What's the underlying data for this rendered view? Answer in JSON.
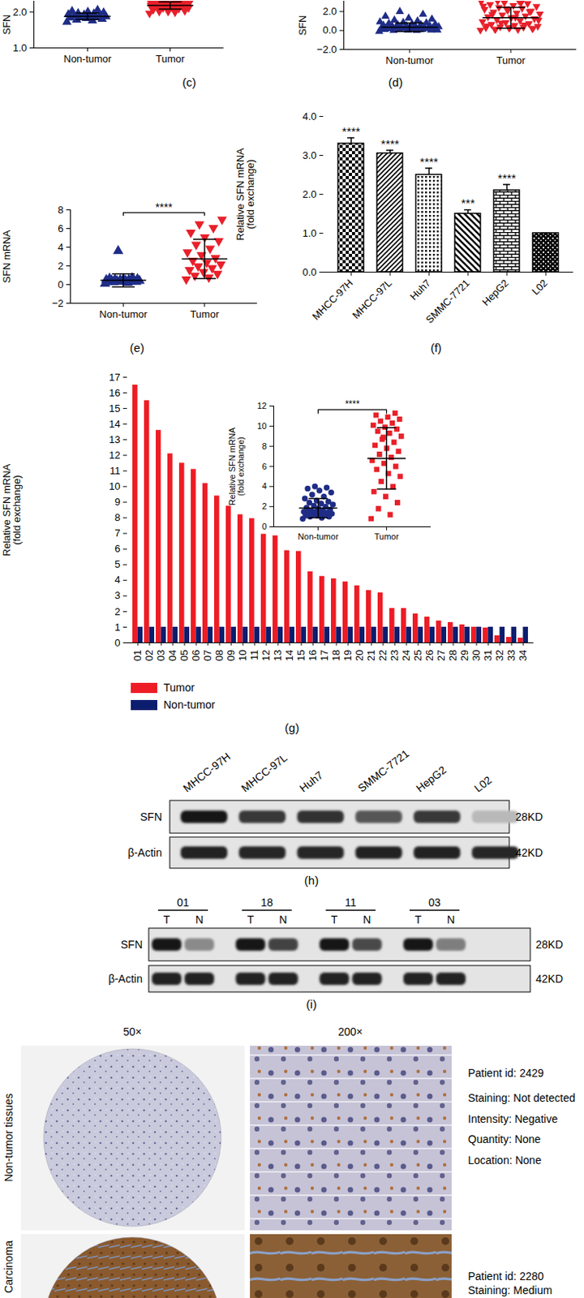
{
  "chart_data": [
    {
      "type": "scatter",
      "title": "(c)",
      "ylabel": "SFN",
      "ylim": [
        1,
        2.3
      ],
      "yticks": [
        1,
        2
      ],
      "series": [
        {
          "name": "Non-tumor",
          "color": "#1f2d86",
          "marker": "triangle",
          "mean": 1.88,
          "sd": 0.09,
          "values": [
            1.72,
            1.76,
            1.78,
            1.8,
            1.82,
            1.84,
            1.85,
            1.85,
            1.87,
            1.88,
            1.9,
            1.9,
            1.92,
            1.93,
            1.95,
            1.96,
            1.98,
            2.0,
            2.02,
            2.05
          ]
        },
        {
          "name": "Tumor",
          "color": "#e8202a",
          "marker": "triangle-down",
          "mean": 2.18,
          "sd": 0.1,
          "values": [
            1.95,
            1.98,
            2.0,
            2.02,
            2.05,
            2.05,
            2.08,
            2.1,
            2.1,
            2.12,
            2.13,
            2.15,
            2.15,
            2.17,
            2.18,
            2.2,
            2.2,
            2.22,
            2.23,
            2.25,
            2.25,
            2.27,
            2.28,
            2.3,
            2.3,
            2.0,
            2.07,
            2.14,
            2.19,
            2.24,
            2.12,
            2.16,
            2.21,
            2.26,
            2.29,
            2.03,
            2.09,
            2.11,
            2.18,
            2.28
          ]
        }
      ]
    },
    {
      "type": "scatter",
      "title": "(d)",
      "ylabel": "SFN",
      "ylim": [
        -2,
        3.1
      ],
      "yticks": [
        -2,
        0,
        2
      ],
      "series": [
        {
          "name": "Non-tumor",
          "color": "#1f2d86",
          "marker": "triangle",
          "mean": 0.35,
          "sd": 0.45,
          "values": [
            -0.1,
            0,
            0,
            0.05,
            0.05,
            0.1,
            0.1,
            0.1,
            0.15,
            0.15,
            0.2,
            0.2,
            0.2,
            0.25,
            0.25,
            0.3,
            0.3,
            0.3,
            0.35,
            0.35,
            0.4,
            0.4,
            0.45,
            0.45,
            0.5,
            0.5,
            0.55,
            0.6,
            0.6,
            0.65,
            0.7,
            0.75,
            0.8,
            0.85,
            0.9,
            1.0,
            1.1,
            1.2,
            1.3,
            1.5,
            1.7,
            2.0,
            0.05,
            0.12,
            0.18,
            0.22,
            0.28,
            0.33,
            0.38,
            0.42
          ]
        },
        {
          "name": "Tumor",
          "color": "#e8202a",
          "marker": "triangle-down",
          "mean": 1.35,
          "sd": 1.1,
          "values": [
            0,
            0.05,
            0.1,
            0.15,
            0.2,
            0.25,
            0.3,
            0.35,
            0.4,
            0.5,
            0.6,
            0.7,
            0.8,
            0.9,
            1.0,
            1.1,
            1.2,
            1.3,
            1.4,
            1.5,
            1.6,
            1.7,
            1.8,
            1.9,
            2.0,
            2.1,
            2.2,
            2.3,
            2.4,
            2.5,
            2.6,
            2.7,
            2.8,
            2.9,
            3.0,
            3.1,
            0.08,
            0.18,
            0.28,
            0.45,
            0.55,
            0.75,
            1.05,
            1.35,
            1.65,
            1.95,
            2.25,
            2.55,
            2.85,
            3.05
          ]
        }
      ]
    },
    {
      "type": "scatter",
      "title": "(e)",
      "ylabel": "SFN mRNA",
      "ylim": [
        -2,
        8
      ],
      "yticks": [
        -2,
        0,
        2,
        4,
        6,
        8
      ],
      "annotations": [
        "****"
      ],
      "series": [
        {
          "name": "Non-tumor",
          "color": "#1f2d86",
          "marker": "triangle",
          "mean": 0.45,
          "sd": 0.7,
          "values": [
            0.1,
            0.2,
            0.25,
            0.3,
            0.3,
            0.35,
            0.35,
            0.4,
            0.4,
            0.42,
            0.45,
            0.45,
            0.5,
            0.5,
            0.52,
            0.55,
            0.6,
            0.6,
            0.65,
            0.7,
            3.6
          ]
        },
        {
          "name": "Tumor",
          "color": "#e8202a",
          "marker": "triangle-down",
          "mean": 2.75,
          "sd": 2.1,
          "values": [
            0.5,
            0.7,
            0.9,
            1.1,
            1.3,
            1.5,
            1.7,
            1.9,
            2.1,
            2.3,
            2.5,
            2.8,
            3.1,
            3.4,
            3.8,
            4.2,
            4.6,
            5.0,
            5.5,
            6.0,
            6.4,
            6.9
          ]
        }
      ]
    },
    {
      "type": "bar",
      "title": "(f)",
      "ylabel": "Relative SFN mRNA\n(fold exchange)",
      "ylim": [
        0,
        4
      ],
      "yticks": [
        0,
        1,
        2,
        3,
        4
      ],
      "color": "#000000",
      "categories": [
        "MHCC-97H",
        "MHCC-97L",
        "Huh7",
        "SMMC-7721",
        "HepG2",
        "L02"
      ],
      "values": [
        3.3,
        3.05,
        2.5,
        1.5,
        2.1,
        1.0
      ],
      "errors": [
        0.15,
        0.08,
        0.17,
        0.1,
        0.15,
        0
      ],
      "annotations": [
        "****",
        "****",
        "****",
        "***",
        "****",
        null
      ]
    },
    {
      "type": "bar",
      "title": "(g)",
      "ylabel": "Relative SFN mRNA\n(fold exchange)",
      "ylim": [
        0,
        17
      ],
      "yticks": [
        0,
        1,
        2,
        3,
        4,
        5,
        6,
        7,
        8,
        9,
        10,
        11,
        12,
        13,
        14,
        15,
        16,
        17
      ],
      "legend": "bottom",
      "categories": [
        "01",
        "02",
        "03",
        "04",
        "05",
        "06",
        "07",
        "08",
        "09",
        "10",
        "11",
        "12",
        "13",
        "14",
        "15",
        "16",
        "17",
        "18",
        "19",
        "20",
        "21",
        "22",
        "23",
        "24",
        "25",
        "26",
        "27",
        "28",
        "29",
        "30",
        "31",
        "32",
        "33",
        "34"
      ],
      "series": [
        {
          "name": "Tumor",
          "color": "#ee1c25",
          "values": [
            16.5,
            15.5,
            13.6,
            12.1,
            11.5,
            11.1,
            10.2,
            9.4,
            8.75,
            8.2,
            7.95,
            6.95,
            6.85,
            5.9,
            5.85,
            4.55,
            4.25,
            4.1,
            3.9,
            3.65,
            3.35,
            3.2,
            2.2,
            2.2,
            1.85,
            1.65,
            1.4,
            1.3,
            1.15,
            1.0,
            0.95,
            0.45,
            0.35,
            0.3
          ]
        },
        {
          "name": "Non-tumor",
          "color": "#0b1d6e",
          "values": [
            1,
            1,
            1,
            1,
            1,
            1,
            1,
            1,
            1,
            1,
            1,
            1,
            1,
            1,
            1,
            1,
            1,
            1,
            1,
            1,
            1,
            1,
            1,
            1,
            1,
            1,
            1,
            1,
            1,
            1,
            1,
            1,
            1,
            1
          ]
        }
      ]
    },
    {
      "type": "scatter",
      "ylabel": "Relative SFN mRNA\n(fold exchange)",
      "ylim": [
        0,
        12
      ],
      "yticks": [
        0,
        2,
        4,
        6,
        8,
        10,
        12
      ],
      "annotations": [
        "****"
      ],
      "series": [
        {
          "name": "Non-tumor",
          "color": "#1f2d86",
          "marker": "circle",
          "mean": 1.85,
          "sd": 0.95,
          "values": [
            0.8,
            0.9,
            1.0,
            1.0,
            1.1,
            1.1,
            1.2,
            1.2,
            1.3,
            1.3,
            1.4,
            1.4,
            1.5,
            1.5,
            1.6,
            1.6,
            1.7,
            1.8,
            1.9,
            2.0,
            2.1,
            2.2,
            2.3,
            2.4,
            2.5,
            2.6,
            2.8,
            3.0,
            3.2,
            3.4,
            3.6,
            3.8,
            3.9,
            4.0
          ]
        },
        {
          "name": "Tumor",
          "color": "#e8202a",
          "marker": "square",
          "mean": 6.8,
          "sd": 3.05,
          "values": [
            0.8,
            1.2,
            1.8,
            2.4,
            3.0,
            3.5,
            4.0,
            4.5,
            5.0,
            5.3,
            5.7,
            6.0,
            6.3,
            6.6,
            6.9,
            7.2,
            7.5,
            7.8,
            8.1,
            8.4,
            8.7,
            9.0,
            9.3,
            9.5,
            9.7,
            9.9,
            10.1,
            10.3,
            10.5,
            10.7,
            10.9,
            11.1,
            11.3,
            8.9
          ]
        }
      ]
    }
  ],
  "blots": [
    {
      "title": "(h)",
      "lanes": [
        "MHCC-97H",
        "MHCC-97L",
        "Huh7",
        "SMMC-7721",
        "HepG2",
        "L02"
      ],
      "rows": [
        {
          "name": "SFN",
          "size": "28KD",
          "bands": [
            1,
            0.85,
            0.88,
            0.72,
            0.85,
            0.3
          ]
        },
        {
          "name": "β-Actin",
          "size": "42KD",
          "bands": [
            0.95,
            0.93,
            0.93,
            0.95,
            0.95,
            0.93
          ]
        }
      ]
    },
    {
      "title": "(i)",
      "groups": [
        "01",
        "18",
        "11",
        "03"
      ],
      "lanes": [
        "T",
        "N"
      ],
      "rows": [
        {
          "name": "SFN",
          "size": "28KD",
          "bands": [
            1,
            0.5,
            1,
            0.8,
            1,
            0.78,
            1,
            0.55
          ]
        },
        {
          "name": "β-Actin",
          "size": "42KD",
          "bands": [
            0.95,
            0.95,
            0.95,
            0.95,
            0.95,
            0.95,
            0.95,
            0.95
          ]
        }
      ]
    }
  ],
  "ihc": {
    "columns": [
      "50×",
      "200×"
    ],
    "rows": [
      {
        "name": "Non-tumor tissues",
        "info": [
          "Patient id: 2429",
          "Staining: Not detected",
          "Intensity: Negative",
          "Quantity: None",
          "Location: None"
        ]
      },
      {
        "name": "Carcinoma",
        "info": [
          "Patient id: 2280",
          "Staining: Medium"
        ]
      }
    ]
  }
}
